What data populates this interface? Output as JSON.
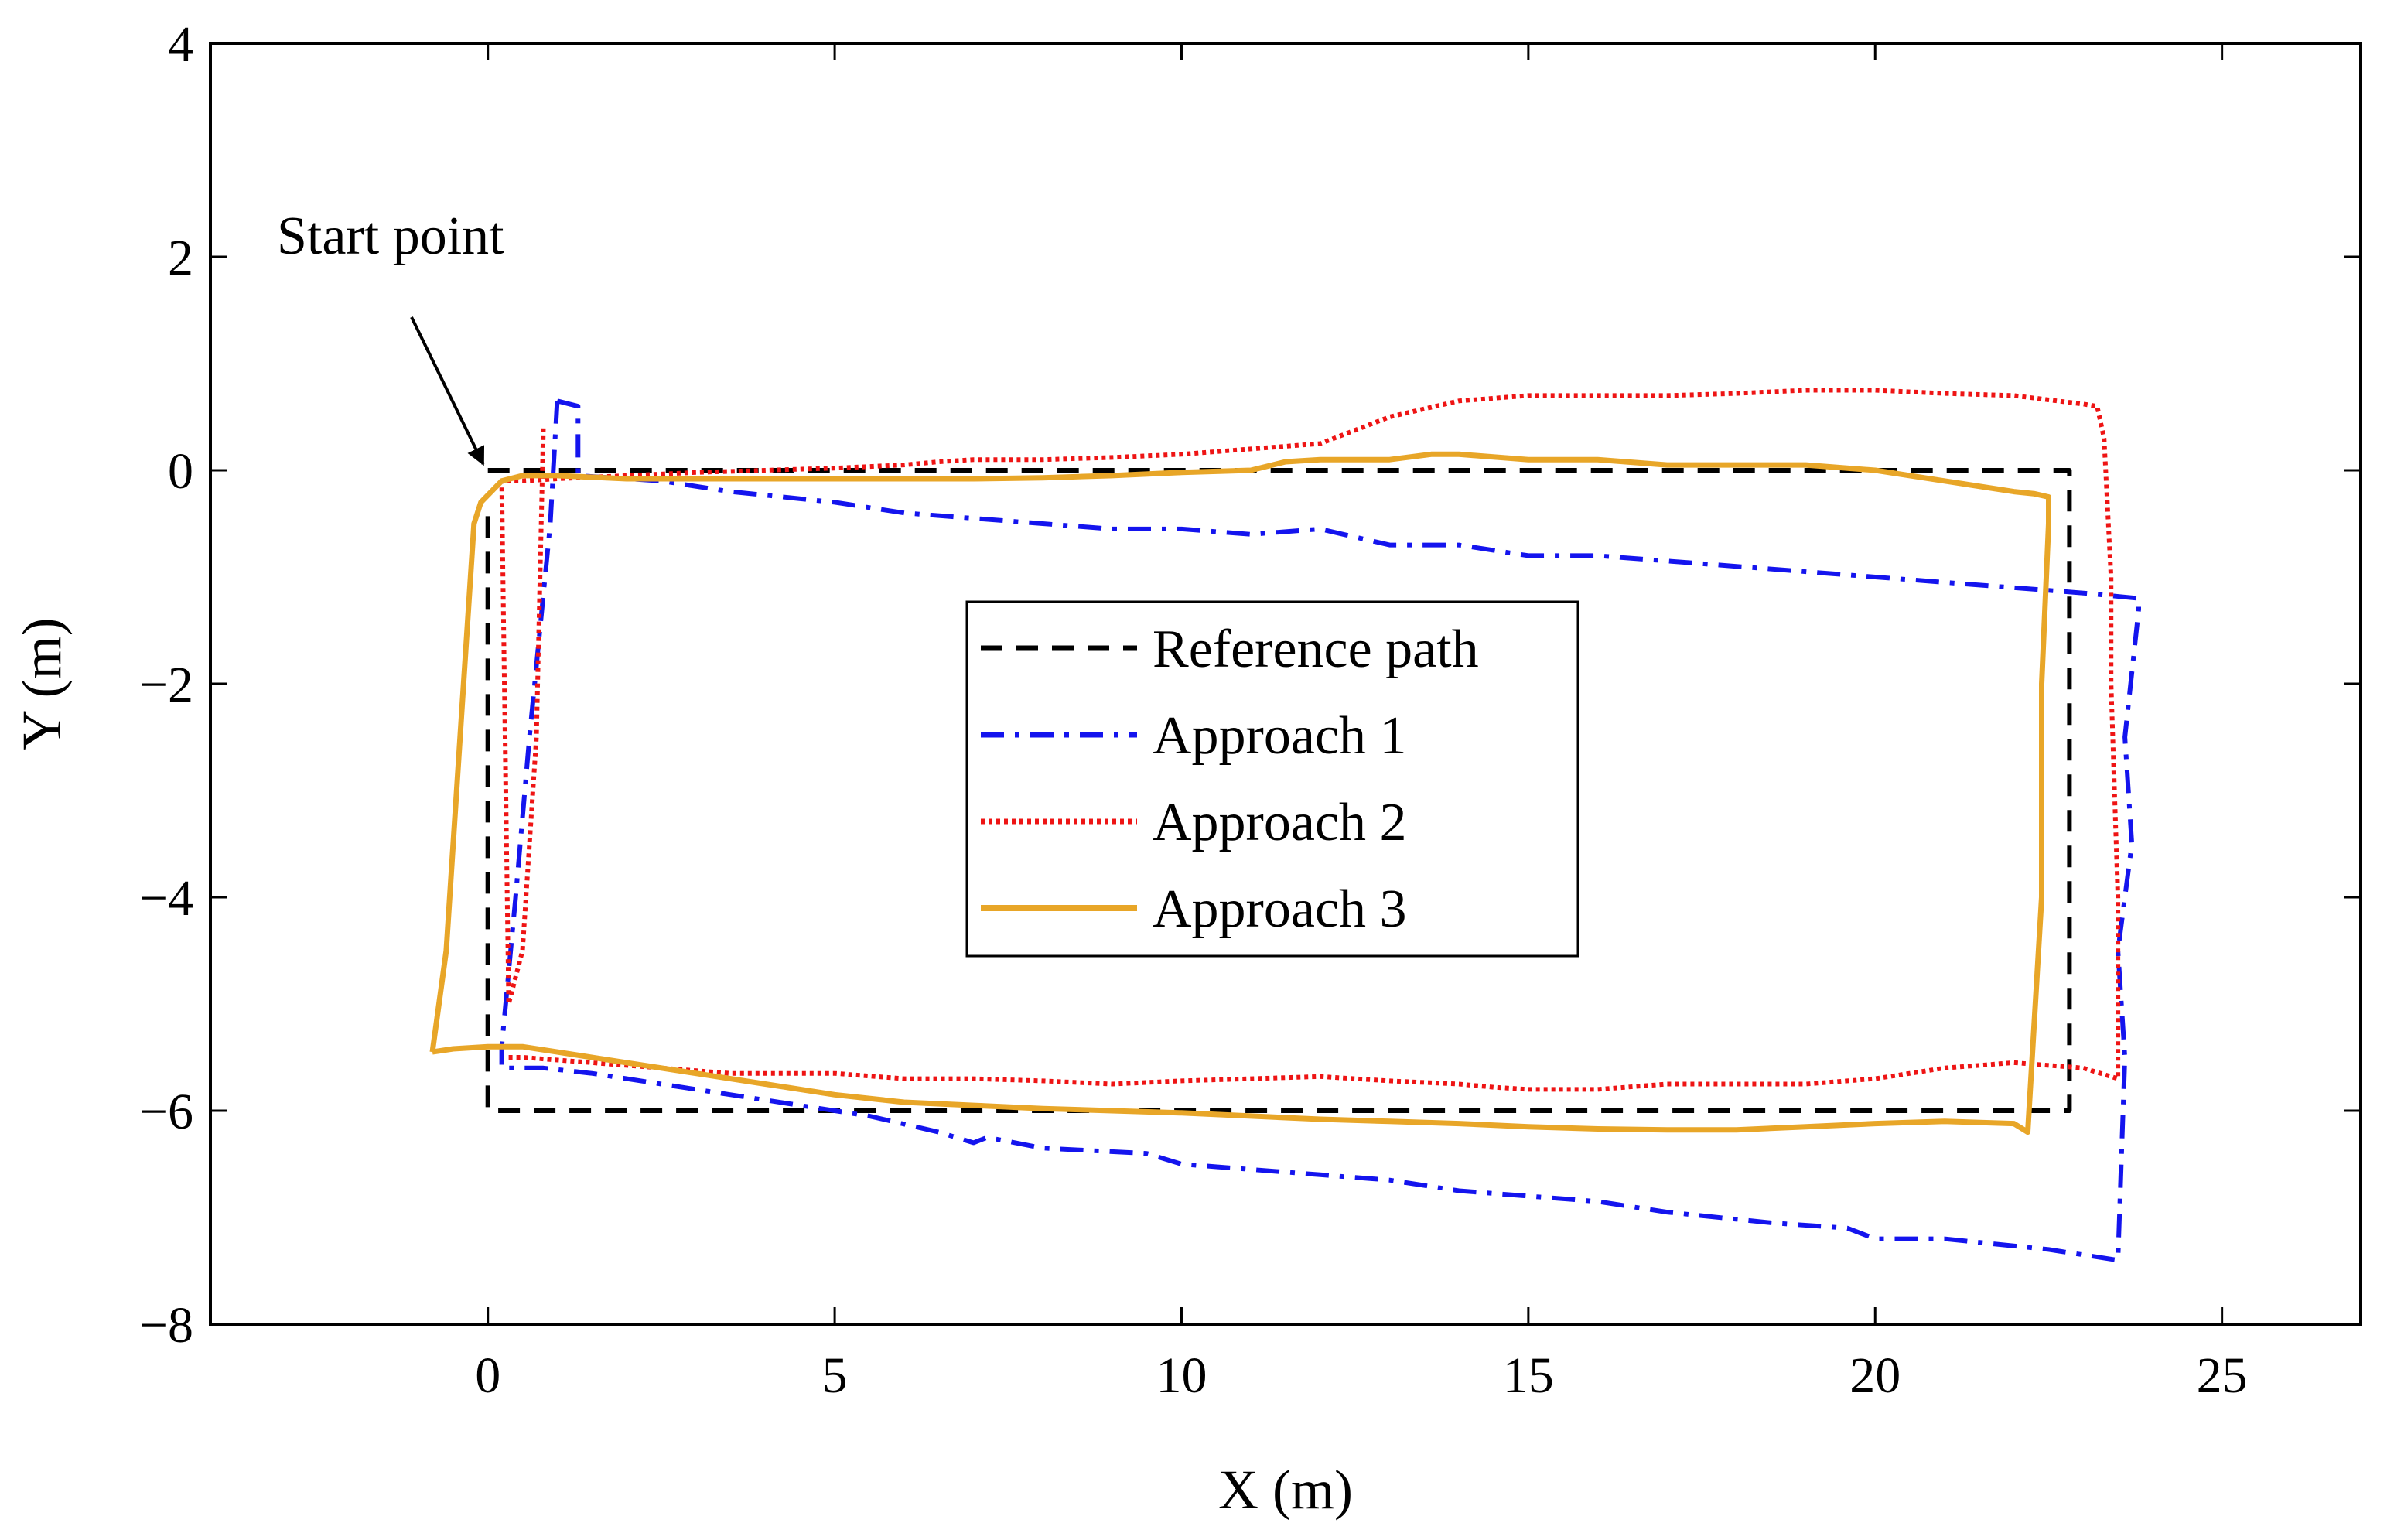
{
  "chart_data": {
    "type": "line",
    "title": "",
    "xlabel": "X (m)",
    "ylabel": "Y (m)",
    "xlim": [
      -4,
      27
    ],
    "ylim": [
      -8,
      4
    ],
    "xticks": [
      0,
      5,
      10,
      15,
      20,
      25
    ],
    "yticks": [
      -8,
      -6,
      -4,
      -2,
      0,
      2,
      4
    ],
    "xtick_labels": [
      "0",
      "5",
      "10",
      "15",
      "20",
      "25"
    ],
    "ytick_labels": [
      "−8",
      "−6",
      "−4",
      "−2",
      "0",
      "2",
      "4"
    ],
    "grid": false,
    "legend_position": "center",
    "annotation": {
      "text": "Start point",
      "target": [
        0,
        0
      ],
      "text_anchor": [
        -3.0,
        2.0
      ]
    },
    "series": [
      {
        "name": "Reference path",
        "color": "#000000",
        "style": "dashed",
        "x": [
          0,
          22.8,
          22.8,
          0,
          0
        ],
        "y": [
          0,
          0,
          -6,
          -6,
          -0.3
        ]
      },
      {
        "name": "Approach 1",
        "color": "#1414ee",
        "style": "dashdot",
        "x": [
          1.0,
          1.3,
          1.3,
          2.5,
          3.5,
          5.0,
          6.0,
          7.0,
          8.0,
          9.0,
          10.0,
          11.0,
          12.0,
          13.0,
          14.0,
          14.5,
          15.0,
          16.0,
          17.0,
          18.0,
          19.0,
          20.0,
          21.0,
          22.0,
          23.0,
          23.8,
          23.8,
          23.6,
          23.7,
          23.5,
          23.6,
          23.5,
          22.5,
          21.0,
          20.0,
          19.6,
          18.5,
          17.0,
          16.0,
          15.0,
          14.0,
          13.0,
          12.0,
          11.0,
          10.0,
          9.5,
          8.0,
          7.2,
          7.0,
          6.5,
          5.5,
          4.5,
          3.5,
          2.5,
          1.5,
          0.8,
          0.2,
          0.2,
          0.4,
          0.6,
          0.9,
          1.0
        ],
        "y": [
          0.65,
          0.6,
          -0.05,
          -0.1,
          -0.2,
          -0.3,
          -0.4,
          -0.45,
          -0.5,
          -0.55,
          -0.55,
          -0.6,
          -0.55,
          -0.7,
          -0.7,
          -0.75,
          -0.8,
          -0.8,
          -0.85,
          -0.9,
          -0.95,
          -1.0,
          -1.05,
          -1.1,
          -1.15,
          -1.2,
          -1.3,
          -2.5,
          -3.5,
          -4.5,
          -5.5,
          -7.4,
          -7.3,
          -7.2,
          -7.2,
          -7.1,
          -7.05,
          -6.95,
          -6.85,
          -6.8,
          -6.75,
          -6.65,
          -6.6,
          -6.55,
          -6.5,
          -6.4,
          -6.35,
          -6.25,
          -6.3,
          -6.2,
          -6.05,
          -5.95,
          -5.85,
          -5.75,
          -5.65,
          -5.6,
          -5.6,
          -5.4,
          -4.0,
          -2.5,
          -0.5,
          0.65
        ]
      },
      {
        "name": "Approach 2",
        "color": "#ee1414",
        "style": "dotted",
        "x": [
          0.3,
          0.5,
          1.5,
          2.5,
          3.5,
          5.0,
          6.0,
          7.0,
          8.0,
          9.0,
          10.0,
          11.0,
          12.0,
          12.5,
          13.0,
          14.0,
          14.5,
          15.0,
          16.0,
          17.0,
          18.0,
          19.0,
          20.0,
          21.0,
          22.0,
          23.0,
          23.5,
          23.5,
          23.4,
          23.4,
          23.3,
          23.2,
          23.0,
          22.0,
          21.0,
          20.0,
          19.0,
          18.0,
          17.0,
          16.0,
          15.0,
          14.0,
          13.0,
          12.0,
          11.0,
          10.0,
          9.0,
          8.0,
          7.0,
          6.5,
          6.0,
          5.0,
          4.0,
          3.0,
          2.0,
          1.0,
          0.5,
          0.2,
          0.3,
          0.5,
          0.7,
          0.8
        ],
        "y": [
          -5.5,
          -5.5,
          -5.55,
          -5.6,
          -5.65,
          -5.65,
          -5.7,
          -5.7,
          -5.72,
          -5.75,
          -5.72,
          -5.7,
          -5.68,
          -5.7,
          -5.72,
          -5.75,
          -5.78,
          -5.8,
          -5.8,
          -5.75,
          -5.75,
          -5.75,
          -5.7,
          -5.6,
          -5.55,
          -5.6,
          -5.7,
          -4.0,
          -2.0,
          -1.0,
          0.3,
          0.6,
          0.62,
          0.7,
          0.72,
          0.75,
          0.75,
          0.72,
          0.7,
          0.7,
          0.7,
          0.65,
          0.5,
          0.25,
          0.2,
          0.15,
          0.12,
          0.1,
          0.1,
          0.08,
          0.05,
          0.02,
          0.0,
          -0.02,
          -0.05,
          -0.08,
          -0.1,
          -0.1,
          -5.0,
          -4.5,
          -2.5,
          0.4
        ]
      },
      {
        "name": "Approach 3",
        "color": "#e8a628",
        "style": "solid",
        "x": [
          -0.8,
          -0.5,
          0.0,
          0.5,
          1.0,
          2.0,
          3.0,
          4.0,
          5.0,
          6.0,
          7.0,
          8.0,
          9.0,
          10.0,
          11.0,
          12.0,
          13.0,
          14.0,
          15.0,
          16.0,
          17.0,
          18.0,
          19.0,
          20.0,
          21.0,
          22.0,
          22.2,
          22.4,
          22.4,
          22.5,
          22.5,
          22.3,
          22.0,
          21.0,
          20.0,
          19.0,
          18.0,
          17.0,
          16.0,
          15.0,
          14.0,
          13.6,
          13.0,
          12.0,
          11.5,
          11.0,
          10.0,
          9.0,
          8.0,
          7.0,
          6.0,
          5.0,
          4.0,
          3.0,
          2.0,
          1.0,
          0.5,
          0.2,
          -0.1,
          -0.2,
          -0.4,
          -0.6,
          -0.8
        ],
        "y": [
          -5.45,
          -5.42,
          -5.4,
          -5.4,
          -5.45,
          -5.55,
          -5.65,
          -5.75,
          -5.85,
          -5.92,
          -5.95,
          -5.98,
          -6.0,
          -6.02,
          -6.05,
          -6.08,
          -6.1,
          -6.12,
          -6.15,
          -6.17,
          -6.18,
          -6.18,
          -6.15,
          -6.12,
          -6.1,
          -6.12,
          -6.2,
          -4.0,
          -2.0,
          -0.5,
          -0.25,
          -0.22,
          -0.2,
          -0.1,
          0.0,
          0.05,
          0.05,
          0.05,
          0.1,
          0.1,
          0.15,
          0.15,
          0.1,
          0.1,
          0.08,
          0.0,
          -0.02,
          -0.05,
          -0.07,
          -0.08,
          -0.08,
          -0.08,
          -0.08,
          -0.08,
          -0.08,
          -0.05,
          -0.05,
          -0.1,
          -0.3,
          -0.5,
          -2.5,
          -4.5,
          -5.45
        ]
      }
    ]
  }
}
